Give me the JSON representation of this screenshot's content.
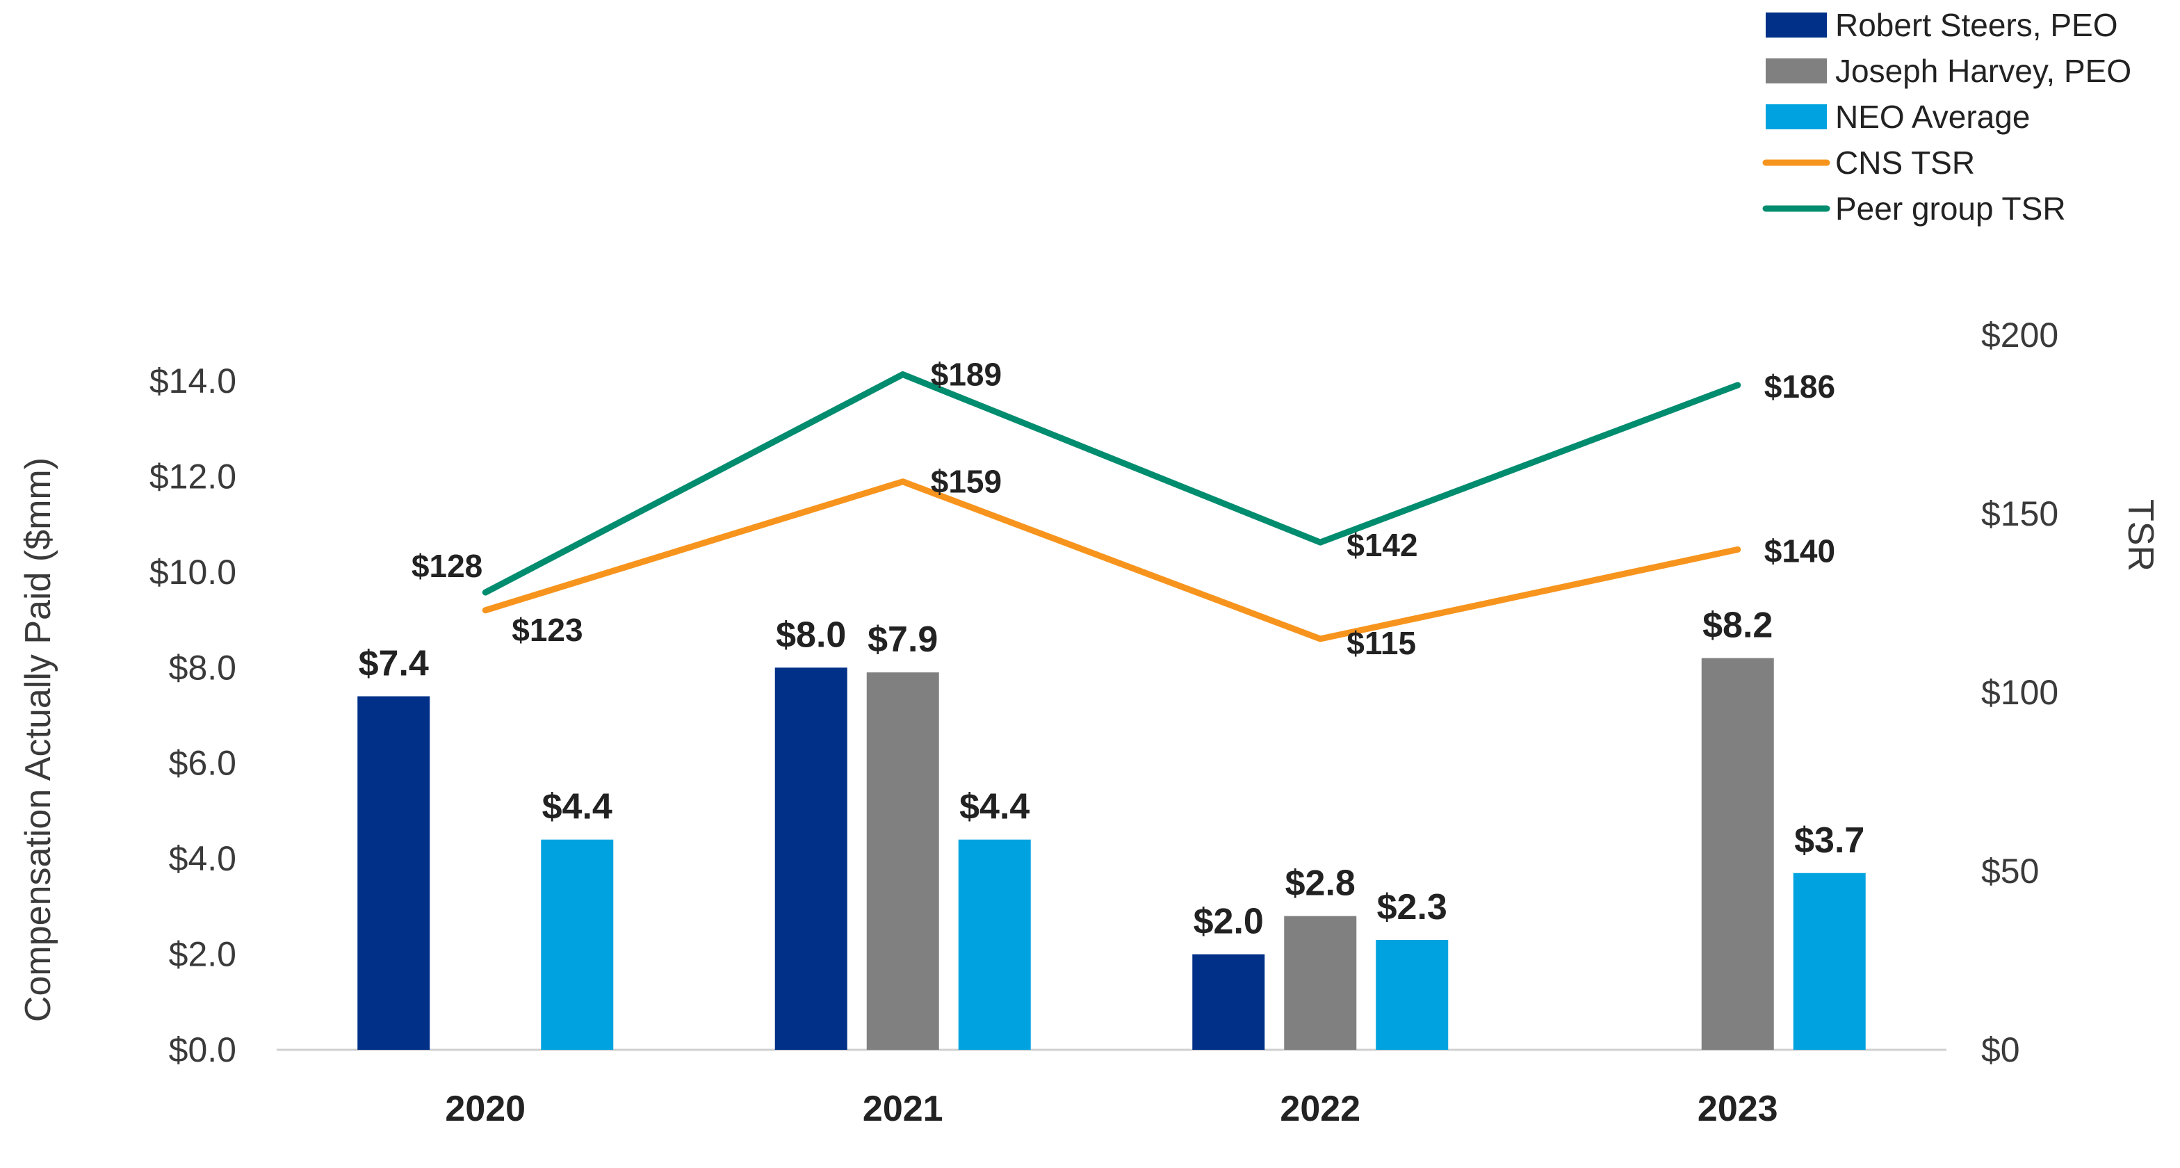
{
  "chart_data": {
    "type": "bar",
    "categories": [
      "2020",
      "2021",
      "2022",
      "2023"
    ],
    "ylabel": "Compensation Actually Paid ($mm)",
    "ylim": [
      0,
      14
    ],
    "y_ticks": [
      "$0.0",
      "$2.0",
      "$4.0",
      "$6.0",
      "$8.0",
      "$10.0",
      "$12.0",
      "$14.0"
    ],
    "y2label": "TSR",
    "y2lim": [
      0,
      200
    ],
    "y2_ticks": [
      "$0",
      "$50",
      "$100",
      "$150",
      "$200"
    ],
    "bar_series": [
      {
        "name": "Robert Steers, PEO",
        "color": "#003087",
        "values": [
          7.4,
          8.0,
          2.0,
          null
        ],
        "labels": [
          "$7.4",
          "$8.0",
          "$2.0",
          ""
        ]
      },
      {
        "name": "Joseph Harvey, PEO",
        "color": "#808080",
        "values": [
          null,
          7.9,
          2.8,
          8.2
        ],
        "labels": [
          "",
          "$7.9",
          "$2.8",
          "$8.2"
        ]
      },
      {
        "name": "NEO Average",
        "color": "#00A3E0",
        "values": [
          4.4,
          4.4,
          2.3,
          3.7
        ],
        "labels": [
          "$4.4",
          "$4.4",
          "$2.3",
          "$3.7"
        ]
      }
    ],
    "line_series": [
      {
        "name": "CNS TSR",
        "color": "#F7941D",
        "axis": "right",
        "values": [
          123,
          159,
          115,
          140
        ],
        "labels": [
          "$123",
          "$159",
          "$115",
          "$140"
        ]
      },
      {
        "name": "Peer group TSR",
        "color": "#008C6E",
        "axis": "right",
        "values": [
          128,
          189,
          142,
          186
        ],
        "labels": [
          "$128",
          "$189",
          "$142",
          "$186"
        ]
      }
    ],
    "legend_position": "top-right",
    "grid": false
  }
}
